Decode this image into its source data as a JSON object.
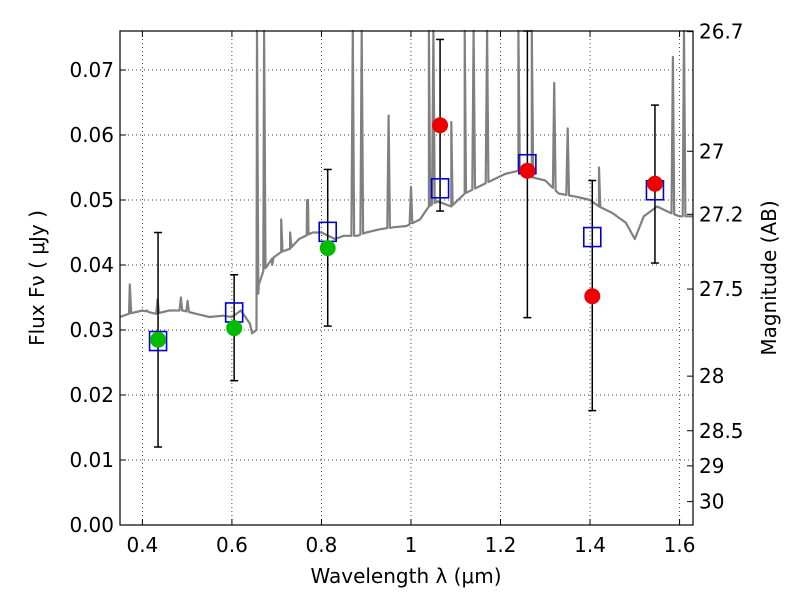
{
  "chart_data": {
    "type": "scatter",
    "xlabel": "Wavelength  λ (μm)",
    "ylabel": "Flux  Fν  ( μJy )",
    "ylabel_right": "Magnitude (AB)",
    "xlim": [
      0.35,
      1.63
    ],
    "ylim": [
      0.0,
      0.076
    ],
    "grid": true,
    "x_ticks": [
      0.4,
      0.6,
      0.8,
      1.0,
      1.2,
      1.4,
      1.6
    ],
    "x_tick_labels": [
      "0.4",
      "0.6",
      "0.8",
      "1",
      "1.2",
      "1.4",
      "1.6"
    ],
    "y_ticks": [
      0.0,
      0.01,
      0.02,
      0.03,
      0.04,
      0.05,
      0.06,
      0.07
    ],
    "y_tick_labels": [
      "0.00",
      "0.01",
      "0.02",
      "0.03",
      "0.04",
      "0.05",
      "0.06",
      "0.07"
    ],
    "right_ticks": [
      {
        "label": "26.7",
        "flux": 0.0759
      },
      {
        "label": "27",
        "flux": 0.0575
      },
      {
        "label": "27.2",
        "flux": 0.0478
      },
      {
        "label": "27.5",
        "flux": 0.0363
      },
      {
        "label": "28",
        "flux": 0.0229
      },
      {
        "label": "28.5",
        "flux": 0.0145
      },
      {
        "label": "29",
        "flux": 0.0091
      },
      {
        "label": "30",
        "flux": 0.0036
      }
    ],
    "colors": {
      "spectrum": "#808080",
      "model_box": "#0000cc",
      "green_point": "#00bb00",
      "red_point": "#ee0000",
      "errorbar": "#000000"
    },
    "observed_points": [
      {
        "x": 0.435,
        "y": 0.0285,
        "err_low": 0.012,
        "err_high": 0.045,
        "color": "green"
      },
      {
        "x": 0.605,
        "y": 0.0303,
        "err_low": 0.0222,
        "err_high": 0.0385,
        "color": "green"
      },
      {
        "x": 0.814,
        "y": 0.0426,
        "err_low": 0.0306,
        "err_high": 0.0547,
        "color": "green"
      },
      {
        "x": 1.065,
        "y": 0.0615,
        "err_low": 0.0483,
        "err_high": 0.0747,
        "color": "red"
      },
      {
        "x": 1.26,
        "y": 0.0545,
        "err_low": 0.0319,
        "err_high": 0.0762,
        "color": "red"
      },
      {
        "x": 1.405,
        "y": 0.0352,
        "err_low": 0.0176,
        "err_high": 0.053,
        "color": "red"
      },
      {
        "x": 1.545,
        "y": 0.0525,
        "err_low": 0.0403,
        "err_high": 0.0646,
        "color": "red"
      }
    ],
    "model_photometry": [
      {
        "x": 0.435,
        "y": 0.0283
      },
      {
        "x": 0.605,
        "y": 0.0327
      },
      {
        "x": 0.814,
        "y": 0.0451
      },
      {
        "x": 1.065,
        "y": 0.0518
      },
      {
        "x": 1.26,
        "y": 0.0555
      },
      {
        "x": 1.405,
        "y": 0.0443
      },
      {
        "x": 1.545,
        "y": 0.0515
      }
    ],
    "spectrum": {
      "continuum": [
        [
          0.35,
          0.032
        ],
        [
          0.37,
          0.0325
        ],
        [
          0.4,
          0.033
        ],
        [
          0.43,
          0.0325
        ],
        [
          0.46,
          0.033
        ],
        [
          0.49,
          0.033
        ],
        [
          0.52,
          0.0325
        ],
        [
          0.55,
          0.032
        ],
        [
          0.58,
          0.0322
        ],
        [
          0.6,
          0.032
        ],
        [
          0.62,
          0.033
        ],
        [
          0.64,
          0.031
        ],
        [
          0.645,
          0.0295
        ],
        [
          0.655,
          0.03
        ],
        [
          0.66,
          0.037
        ],
        [
          0.67,
          0.039
        ],
        [
          0.69,
          0.041
        ],
        [
          0.71,
          0.042
        ],
        [
          0.73,
          0.0425
        ],
        [
          0.75,
          0.044
        ],
        [
          0.78,
          0.045
        ],
        [
          0.8,
          0.045
        ],
        [
          0.83,
          0.044
        ],
        [
          0.85,
          0.0445
        ],
        [
          0.88,
          0.0445
        ],
        [
          0.9,
          0.045
        ],
        [
          0.93,
          0.0455
        ],
        [
          0.96,
          0.0458
        ],
        [
          0.99,
          0.046
        ],
        [
          1.02,
          0.047
        ],
        [
          1.04,
          0.049
        ],
        [
          1.06,
          0.0498
        ],
        [
          1.09,
          0.049
        ],
        [
          1.12,
          0.051
        ],
        [
          1.15,
          0.052
        ],
        [
          1.18,
          0.053
        ],
        [
          1.21,
          0.054
        ],
        [
          1.24,
          0.0545
        ],
        [
          1.27,
          0.0535
        ],
        [
          1.3,
          0.053
        ],
        [
          1.33,
          0.051
        ],
        [
          1.37,
          0.0505
        ],
        [
          1.4,
          0.05
        ],
        [
          1.42,
          0.049
        ],
        [
          1.45,
          0.048
        ],
        [
          1.48,
          0.0465
        ],
        [
          1.5,
          0.044
        ],
        [
          1.52,
          0.0475
        ],
        [
          1.55,
          0.049
        ],
        [
          1.58,
          0.048
        ],
        [
          1.6,
          0.0475
        ],
        [
          1.63,
          0.0475
        ]
      ],
      "emission_lines": [
        [
          0.372,
          0.037
        ],
        [
          0.41,
          0.033
        ],
        [
          0.434,
          0.0347
        ],
        [
          0.486,
          0.035
        ],
        [
          0.501,
          0.0345
        ],
        [
          0.656,
          0.076
        ],
        [
          0.672,
          0.076
        ],
        [
          0.69,
          0.04
        ],
        [
          0.71,
          0.047
        ],
        [
          0.73,
          0.045
        ],
        [
          0.768,
          0.05
        ],
        [
          0.77,
          0.05
        ],
        [
          0.87,
          0.076
        ],
        [
          0.89,
          0.076
        ],
        [
          0.95,
          0.063
        ],
        [
          1.0,
          0.052
        ],
        [
          1.04,
          0.076
        ],
        [
          1.05,
          0.076
        ],
        [
          1.09,
          0.062
        ],
        [
          1.12,
          0.076
        ],
        [
          1.14,
          0.076
        ],
        [
          1.17,
          0.076
        ],
        [
          1.24,
          0.076
        ],
        [
          1.27,
          0.076
        ],
        [
          1.32,
          0.068
        ],
        [
          1.35,
          0.061
        ],
        [
          1.42,
          0.055
        ],
        [
          1.585,
          0.072
        ],
        [
          1.61,
          0.076
        ]
      ]
    }
  }
}
